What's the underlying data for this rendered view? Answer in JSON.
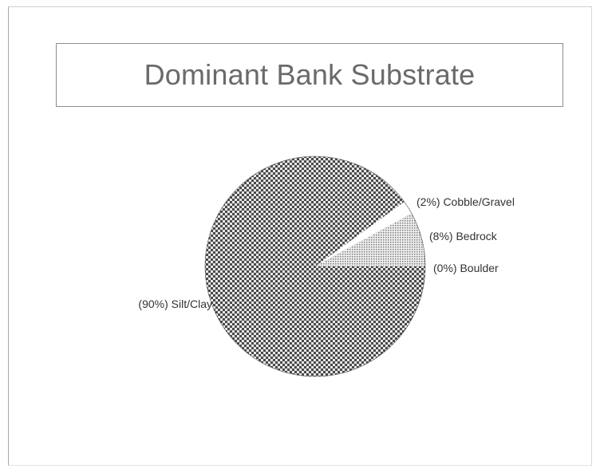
{
  "chart_data": {
    "type": "pie",
    "title": "Dominant Bank Substrate",
    "slices": [
      {
        "label": "(0%) Boulder",
        "category": "Boulder",
        "value": 0,
        "pattern": "none"
      },
      {
        "label": "(8%) Bedrock",
        "category": "Bedrock",
        "value": 8,
        "pattern": "fine-dots"
      },
      {
        "label": "(2%) Cobble/Gravel",
        "category": "Cobble/Gravel",
        "value": 2,
        "pattern": "white"
      },
      {
        "label": "(90%) Silt/Clay",
        "category": "Silt/Clay",
        "value": 90,
        "pattern": "checker"
      }
    ],
    "start_angle_deg": 0,
    "direction": "counterclockwise",
    "legend": "none",
    "colors": {
      "checker_dark": "#4a4a4a",
      "checker_light": "#e6e6e6",
      "fine_dots_dark": "#7a7a7a",
      "fine_dots_light": "#f0f0f0",
      "outline": "#555555"
    }
  }
}
